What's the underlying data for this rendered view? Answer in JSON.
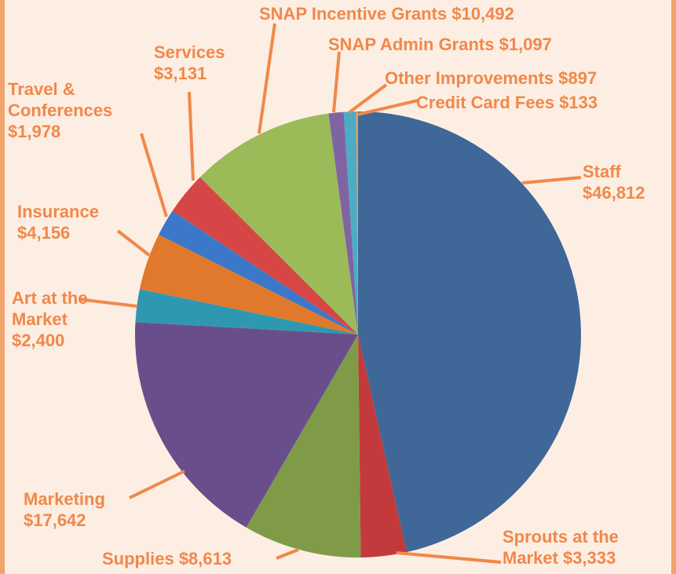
{
  "chart_data": {
    "type": "pie",
    "categories": [
      "Staff",
      "Sprouts at the Market",
      "Supplies",
      "Marketing",
      "Art at the Market",
      "Insurance",
      "Travel & Conferences",
      "Services",
      "SNAP Incentive Grants",
      "SNAP Admin Grants",
      "Other Improvements",
      "Credit Card Fees"
    ],
    "values": [
      46812,
      3333,
      8613,
      17642,
      2400,
      4156,
      1978,
      3131,
      10492,
      1097,
      897,
      133
    ],
    "value_labels": [
      "$46,812",
      "$3,333",
      "$8,613",
      "$17,642",
      "$2,400",
      "$4,156",
      "$1,978",
      "$3,131",
      "$10,492",
      "$1,097",
      "$897",
      "$133"
    ],
    "colors": [
      "#3f6797",
      "#c23a3b",
      "#7f9b48",
      "#684f8b",
      "#2e98b1",
      "#e0792b",
      "#3b78c9",
      "#d64646",
      "#9bbb59",
      "#8064a2",
      "#4bacc6",
      "#f79646"
    ]
  }
}
